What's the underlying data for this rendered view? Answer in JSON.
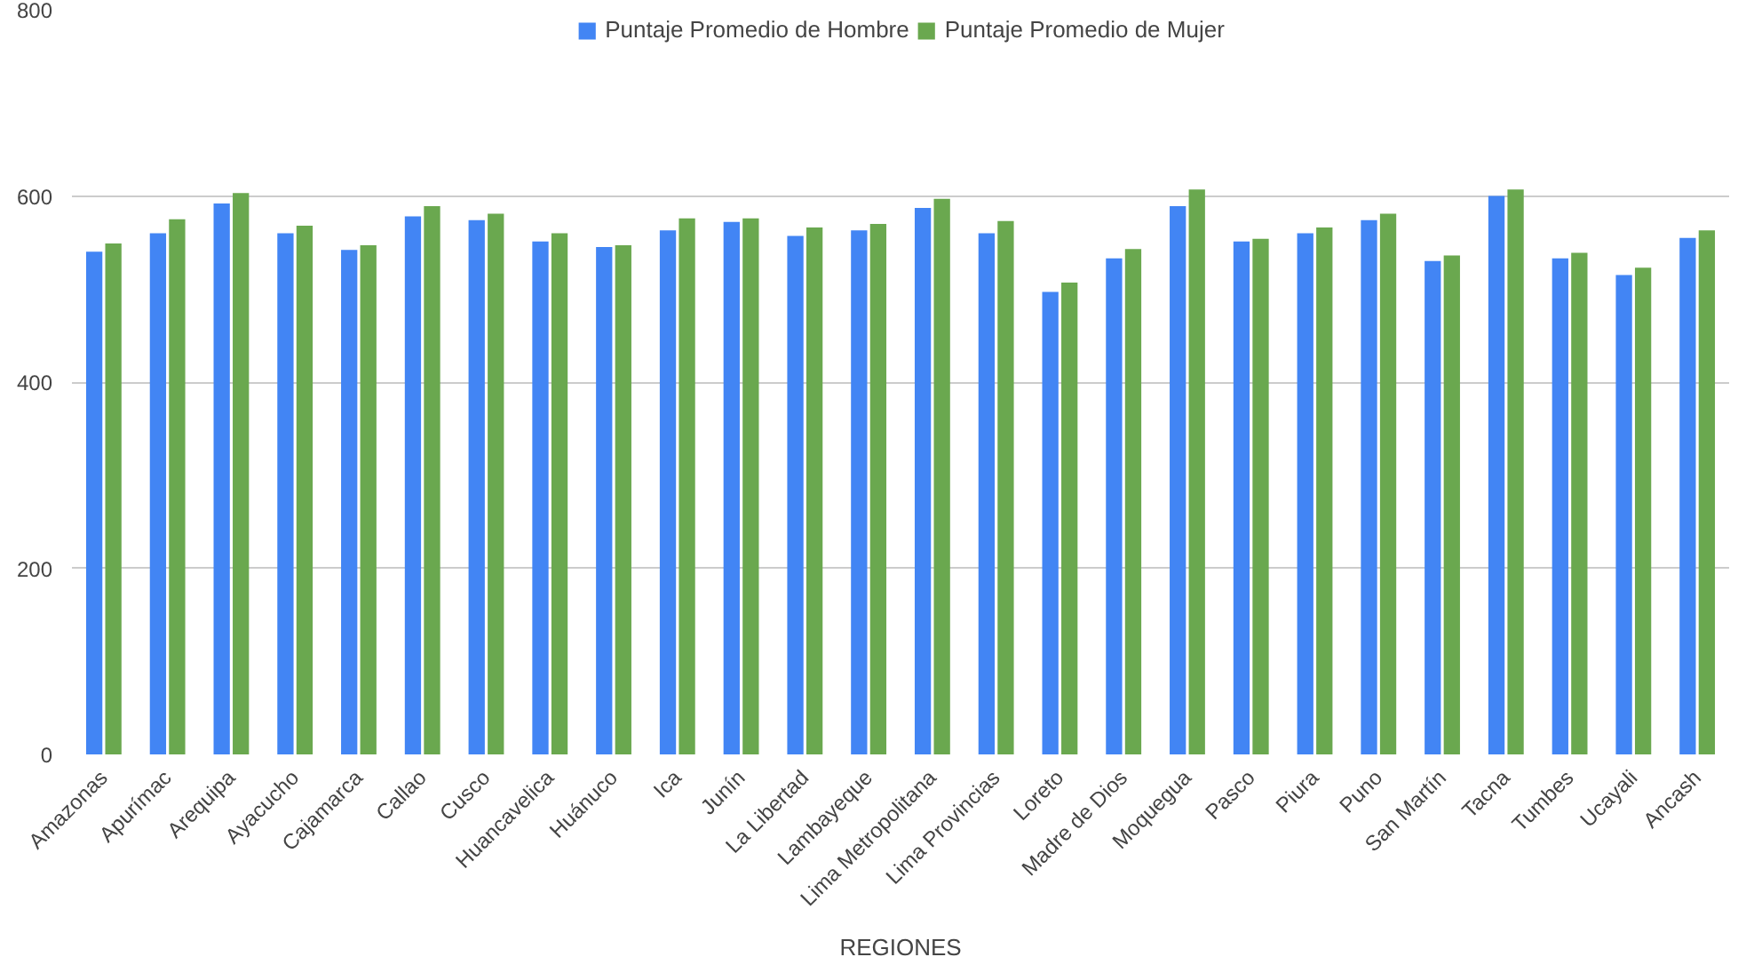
{
  "chart_data": {
    "type": "bar",
    "xlabel": "REGIONES",
    "categories": [
      "Amazonas",
      "Apurímac",
      "Arequipa",
      "Ayacucho",
      "Cajamarca",
      "Callao",
      "Cusco",
      "Huancavelica",
      "Huánuco",
      "Ica",
      "Junín",
      "La Libertad",
      "Lambayeque",
      "Lima Metropolitana",
      "Lima Provincias",
      "Loreto",
      "Madre de Dios",
      "Moquegua",
      "Pasco",
      "Piura",
      "Puno",
      "San Martín",
      "Tacna",
      "Tumbes",
      "Ucayali",
      "Ancash"
    ],
    "series": [
      {
        "name": "Puntaje Promedio de Hombre",
        "color": "#4285f4",
        "values": [
          540,
          560,
          592,
          560,
          542,
          578,
          574,
          551,
          545,
          563,
          572,
          557,
          563,
          587,
          560,
          497,
          533,
          589,
          551,
          560,
          574,
          530,
          600,
          533,
          515,
          555
        ]
      },
      {
        "name": "Puntaje Promedio de Mujer",
        "color": "#6aa84f",
        "values": [
          549,
          575,
          603,
          568,
          547,
          589,
          581,
          560,
          547,
          576,
          576,
          566,
          570,
          597,
          573,
          507,
          543,
          607,
          554,
          566,
          581,
          536,
          607,
          539,
          523,
          563
        ]
      }
    ],
    "ylim": [
      0,
      800
    ],
    "yticks": [
      0,
      200,
      400,
      600,
      800
    ],
    "grid": "y",
    "legend": "top"
  }
}
